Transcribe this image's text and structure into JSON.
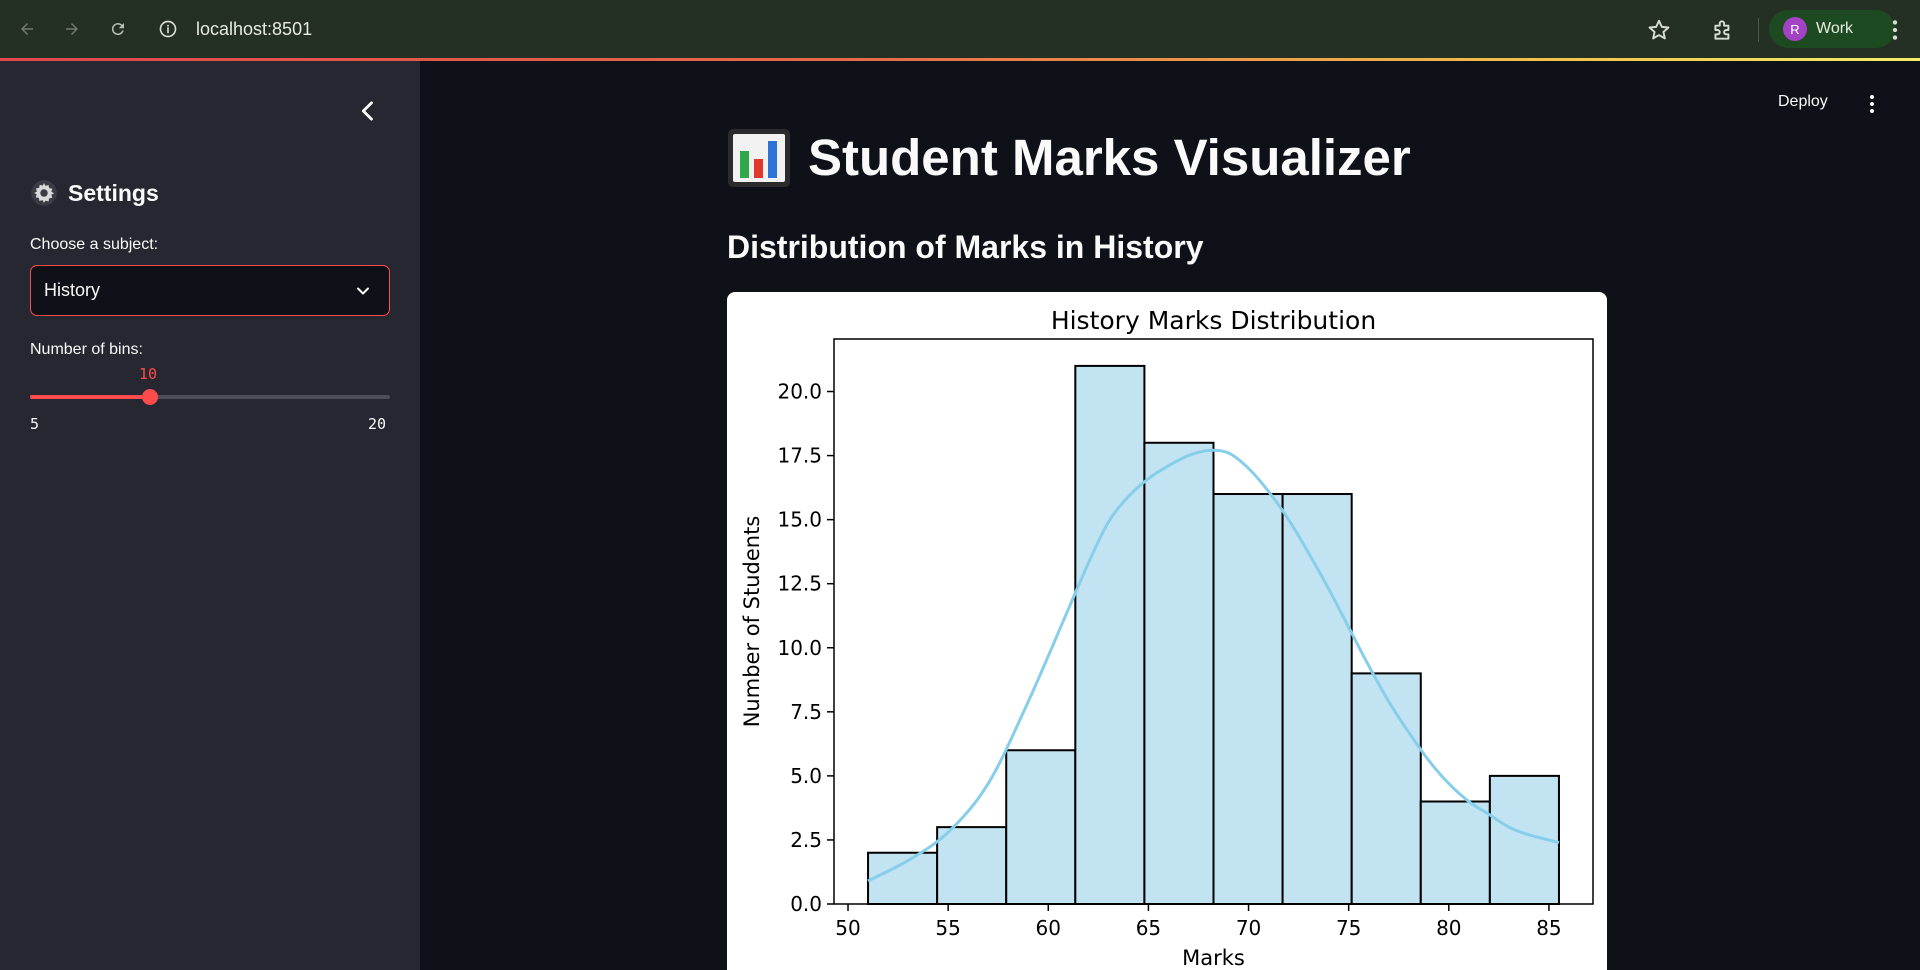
{
  "browser": {
    "url": "localhost:8501",
    "profile_initial": "R",
    "profile_label": "Work",
    "icons": [
      "back-arrow-icon",
      "forward-arrow-icon",
      "reload-icon",
      "site-info-icon",
      "bookmark-star-icon",
      "extensions-icon",
      "more-vert-icon"
    ]
  },
  "sidebar": {
    "title": "Settings",
    "subject_label": "Choose a subject:",
    "subject_value": "History",
    "bins_label": "Number of bins:",
    "bins_value": "10",
    "bins_min": "5",
    "bins_max": "20",
    "accent_color": "#ff4b4b"
  },
  "main": {
    "deploy_label": "Deploy",
    "app_title": "Student Marks Visualizer",
    "subheader": "Distribution of Marks in History"
  },
  "chart_data": {
    "type": "bar",
    "title": "History Marks Distribution",
    "xlabel": "Marks",
    "ylabel": "Number of Students",
    "bin_edges": [
      51.0,
      54.45,
      57.9,
      61.35,
      64.8,
      68.25,
      71.7,
      75.15,
      78.6,
      82.05,
      85.5
    ],
    "values": [
      2,
      3,
      6,
      21,
      18,
      16,
      16,
      9,
      4,
      5
    ],
    "xlim": [
      49.3,
      87.2
    ],
    "ylim": [
      0,
      22.05
    ],
    "xticks": [
      50,
      55,
      60,
      65,
      70,
      75,
      80,
      85
    ],
    "yticks": [
      "0.0",
      "2.5",
      "5.0",
      "7.5",
      "10.0",
      "12.5",
      "15.0",
      "17.5",
      "20.0"
    ],
    "kde": {
      "x": [
        51,
        53,
        55,
        57,
        59,
        61,
        62,
        63,
        64,
        65,
        66,
        67,
        68,
        69,
        70,
        71,
        72,
        73,
        74,
        75,
        76,
        77,
        78,
        79,
        80,
        81,
        82,
        83,
        84,
        85.5
      ],
      "y": [
        0.9,
        1.7,
        2.8,
        4.7,
        7.9,
        11.5,
        13.3,
        14.9,
        15.9,
        16.6,
        17.1,
        17.5,
        17.7,
        17.6,
        17.0,
        16.1,
        15.0,
        13.7,
        12.3,
        10.8,
        9.3,
        7.9,
        6.7,
        5.6,
        4.7,
        4.0,
        3.5,
        3.0,
        2.7,
        2.4
      ]
    },
    "bar_color": "#c2e3f1",
    "kde_color": "#87ceeb",
    "grid": false
  }
}
